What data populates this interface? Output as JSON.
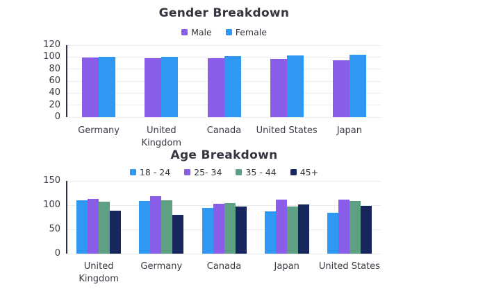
{
  "chart_data": [
    {
      "type": "bar",
      "title": "Gender Breakdown",
      "categories": [
        "Germany",
        "United Kingdom",
        "Canada",
        "United States",
        "Japan"
      ],
      "series": [
        {
          "name": "Male",
          "color": "#8A5DE8",
          "values": [
            99,
            98,
            98,
            97,
            95
          ]
        },
        {
          "name": "Female",
          "color": "#2F98F3",
          "values": [
            100,
            100,
            101,
            103,
            104
          ]
        }
      ],
      "ylim": [
        0,
        120
      ],
      "yticks": [
        0,
        20,
        40,
        60,
        80,
        100,
        120
      ],
      "grid": true,
      "legend_position": "top"
    },
    {
      "type": "bar",
      "title": "Age Breakdown",
      "categories": [
        "United Kingdom",
        "Germany",
        "Canada",
        "Japan",
        "United States"
      ],
      "series": [
        {
          "name": "18 - 24",
          "color": "#2F98F3",
          "values": [
            110,
            109,
            95,
            87,
            84
          ]
        },
        {
          "name": "25- 34",
          "color": "#8A5DE8",
          "values": [
            113,
            118,
            103,
            112,
            111
          ]
        },
        {
          "name": "35 - 44",
          "color": "#5DA083",
          "values": [
            107,
            110,
            104,
            97,
            109
          ]
        },
        {
          "name": "45+",
          "color": "#18265E",
          "values": [
            88,
            80,
            97,
            101,
            99
          ]
        }
      ],
      "ylim": [
        0,
        150
      ],
      "yticks": [
        0,
        50,
        100,
        150
      ],
      "grid": true,
      "legend_position": "top"
    }
  ]
}
